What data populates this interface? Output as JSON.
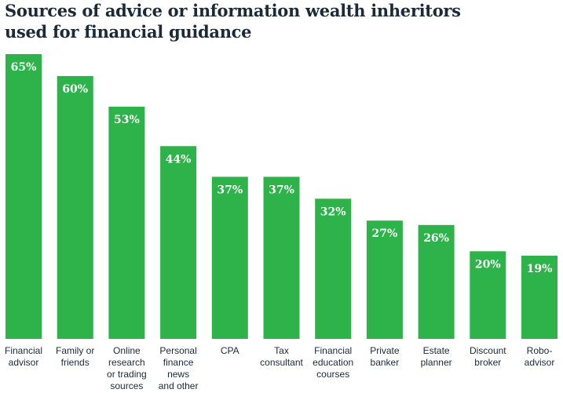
{
  "chart_data": {
    "type": "bar",
    "title": "Sources of advice or information wealth inheritors\nused for financial guidance",
    "categories": [
      "Financial\nadvisor",
      "Family or\nfriends",
      "Online\nresearch\nor trading\nsources",
      "Personal\nfinance\nnews\nand other",
      "CPA",
      "Tax\nconsultant",
      "Financial\neducation\ncourses",
      "Private\nbanker",
      "Estate\nplanner",
      "Discount\nbroker",
      "Robo-\nadvisor"
    ],
    "values": [
      65,
      60,
      53,
      44,
      37,
      37,
      32,
      27,
      26,
      20,
      19
    ],
    "value_labels": [
      "65%",
      "60%",
      "53%",
      "44%",
      "37%",
      "37%",
      "32%",
      "27%",
      "26%",
      "20%",
      "19%"
    ],
    "color": "#2db34a",
    "ylim": [
      0,
      65
    ]
  }
}
